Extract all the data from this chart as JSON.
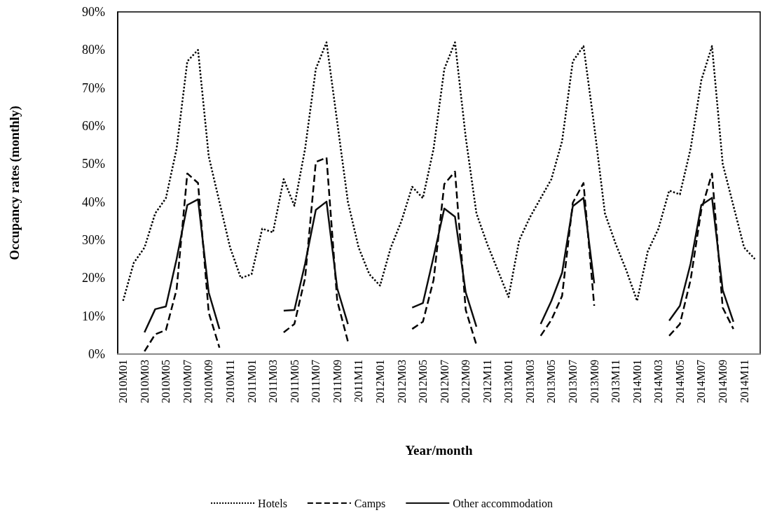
{
  "chart_data": {
    "type": "line",
    "xlabel": "Year/month",
    "ylabel": "Occupancy rates (monthly)",
    "categories": [
      "2010M01",
      null,
      "2010M03",
      null,
      "2010M05",
      null,
      "2010M07",
      null,
      "2010M09",
      null,
      "2010M11",
      null,
      "2011M01",
      null,
      "2011M03",
      null,
      "2011M05",
      null,
      "2011M07",
      null,
      "2011M09",
      null,
      "2011M11",
      null,
      "2012M01",
      null,
      "2012M03",
      null,
      "2012M05",
      null,
      "2012M07",
      null,
      "2012M09",
      null,
      "2012M11",
      null,
      "2013M01",
      null,
      "2013M03",
      null,
      "2013M05",
      null,
      "2013M07",
      null,
      "2013M09",
      null,
      "2013M11",
      null,
      "2014M01",
      null,
      "2014M03",
      null,
      "2014M05",
      null,
      "2014M07",
      null,
      "2014M09",
      null,
      "2014M11",
      null
    ],
    "series": [
      {
        "name": "Hotels",
        "color": "#000000",
        "line_style": "dotted",
        "values": [
          14,
          24,
          28,
          37,
          41,
          54,
          77,
          80,
          52,
          40,
          28,
          20,
          21,
          33,
          32,
          46,
          39,
          54,
          75,
          82,
          61,
          40,
          28,
          21,
          18,
          28,
          35,
          44,
          41,
          54,
          75,
          82,
          57,
          37,
          29,
          22,
          15,
          30,
          36,
          41,
          46,
          56,
          77,
          81,
          60,
          37,
          29,
          22,
          14,
          27,
          33,
          43,
          42,
          54,
          72,
          81,
          50,
          39,
          28,
          25
        ]
      },
      {
        "name": "Camps",
        "color": "#000000",
        "line_style": "dashed",
        "values": [
          null,
          null,
          0.7,
          5.2,
          6.3,
          17,
          47.5,
          45,
          10.9,
          1.7,
          null,
          null,
          null,
          null,
          null,
          5.7,
          7.9,
          20,
          50.5,
          51.7,
          14,
          3.3,
          null,
          null,
          null,
          null,
          null,
          6.6,
          8.5,
          19.5,
          44.7,
          48,
          11.6,
          2.4,
          null,
          null,
          null,
          null,
          null,
          4.8,
          9,
          15.3,
          39.8,
          45,
          12.7,
          null,
          null,
          null,
          null,
          null,
          null,
          4.8,
          7.9,
          19.5,
          37.9,
          47.5,
          12.2,
          6.6,
          null,
          null
        ]
      },
      {
        "name": "Other accommodation",
        "color": "#0d0d0d",
        "line_style": "solid",
        "values": [
          null,
          null,
          5.7,
          11.8,
          12.5,
          25,
          39.2,
          40.7,
          16.2,
          6.6,
          null,
          null,
          null,
          null,
          null,
          11.4,
          11.6,
          23.8,
          37.9,
          40.1,
          17.3,
          7.9,
          null,
          null,
          null,
          null,
          null,
          12.2,
          13.4,
          25.6,
          38.3,
          36.1,
          16.2,
          7.2,
          null,
          null,
          null,
          null,
          null,
          7.9,
          14,
          21.4,
          38.9,
          41.1,
          18.6,
          null,
          null,
          null,
          null,
          null,
          null,
          8.8,
          12.7,
          23.8,
          39.2,
          41.1,
          16.8,
          8.5,
          null,
          null
        ]
      }
    ],
    "ylim": [
      0,
      90
    ],
    "yticks": [
      {
        "value": 0,
        "label": "0%"
      },
      {
        "value": 10,
        "label": "10%"
      },
      {
        "value": 20,
        "label": "20%"
      },
      {
        "value": 30,
        "label": "30%"
      },
      {
        "value": 40,
        "label": "40%"
      },
      {
        "value": 50,
        "label": "50%"
      },
      {
        "value": 60,
        "label": "60%"
      },
      {
        "value": 70,
        "label": "70%"
      },
      {
        "value": 80,
        "label": "80%"
      },
      {
        "value": 90,
        "label": "90%"
      }
    ],
    "grid": false,
    "legend": "bottom",
    "marker": "none"
  }
}
